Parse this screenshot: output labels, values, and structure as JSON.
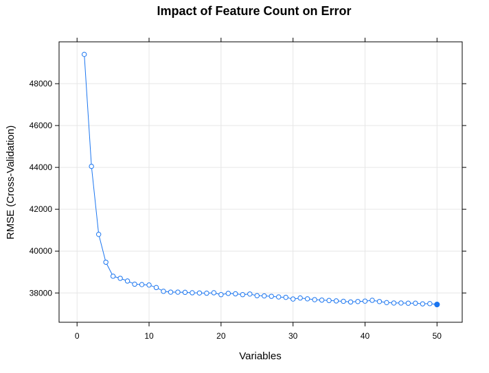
{
  "chart_data": {
    "type": "line",
    "title": "Impact of Feature Count on Error",
    "xlabel": "Variables",
    "ylabel": "RMSE (Cross-Validation)",
    "xlim": [
      -2.5,
      53.5
    ],
    "ylim": [
      36600,
      50000
    ],
    "x_ticks": [
      0,
      10,
      20,
      30,
      40,
      50
    ],
    "y_ticks": [
      38000,
      40000,
      42000,
      44000,
      46000,
      48000
    ],
    "grid": true,
    "line_color": "#1a75f0",
    "series": [
      {
        "x": [
          1,
          2,
          3,
          4,
          5,
          6,
          7,
          8,
          9,
          10,
          11,
          12,
          13,
          14,
          15,
          16,
          17,
          18,
          19,
          20,
          21,
          22,
          23,
          24,
          25,
          26,
          27,
          28,
          29,
          30,
          31,
          32,
          33,
          34,
          35,
          36,
          37,
          38,
          39,
          40,
          41,
          42,
          43,
          44,
          45,
          46,
          47,
          48,
          49,
          50
        ],
        "values": [
          49400,
          44050,
          40800,
          39470,
          38800,
          38700,
          38570,
          38420,
          38400,
          38380,
          38260,
          38080,
          38040,
          38040,
          38030,
          38010,
          38000,
          37990,
          38010,
          37920,
          37980,
          37960,
          37920,
          37950,
          37870,
          37860,
          37840,
          37810,
          37790,
          37710,
          37760,
          37720,
          37680,
          37660,
          37640,
          37620,
          37600,
          37570,
          37590,
          37610,
          37650,
          37590,
          37540,
          37520,
          37520,
          37510,
          37510,
          37480,
          37490,
          37450
        ]
      }
    ],
    "highlight": {
      "x": 50,
      "value": 37450
    }
  }
}
